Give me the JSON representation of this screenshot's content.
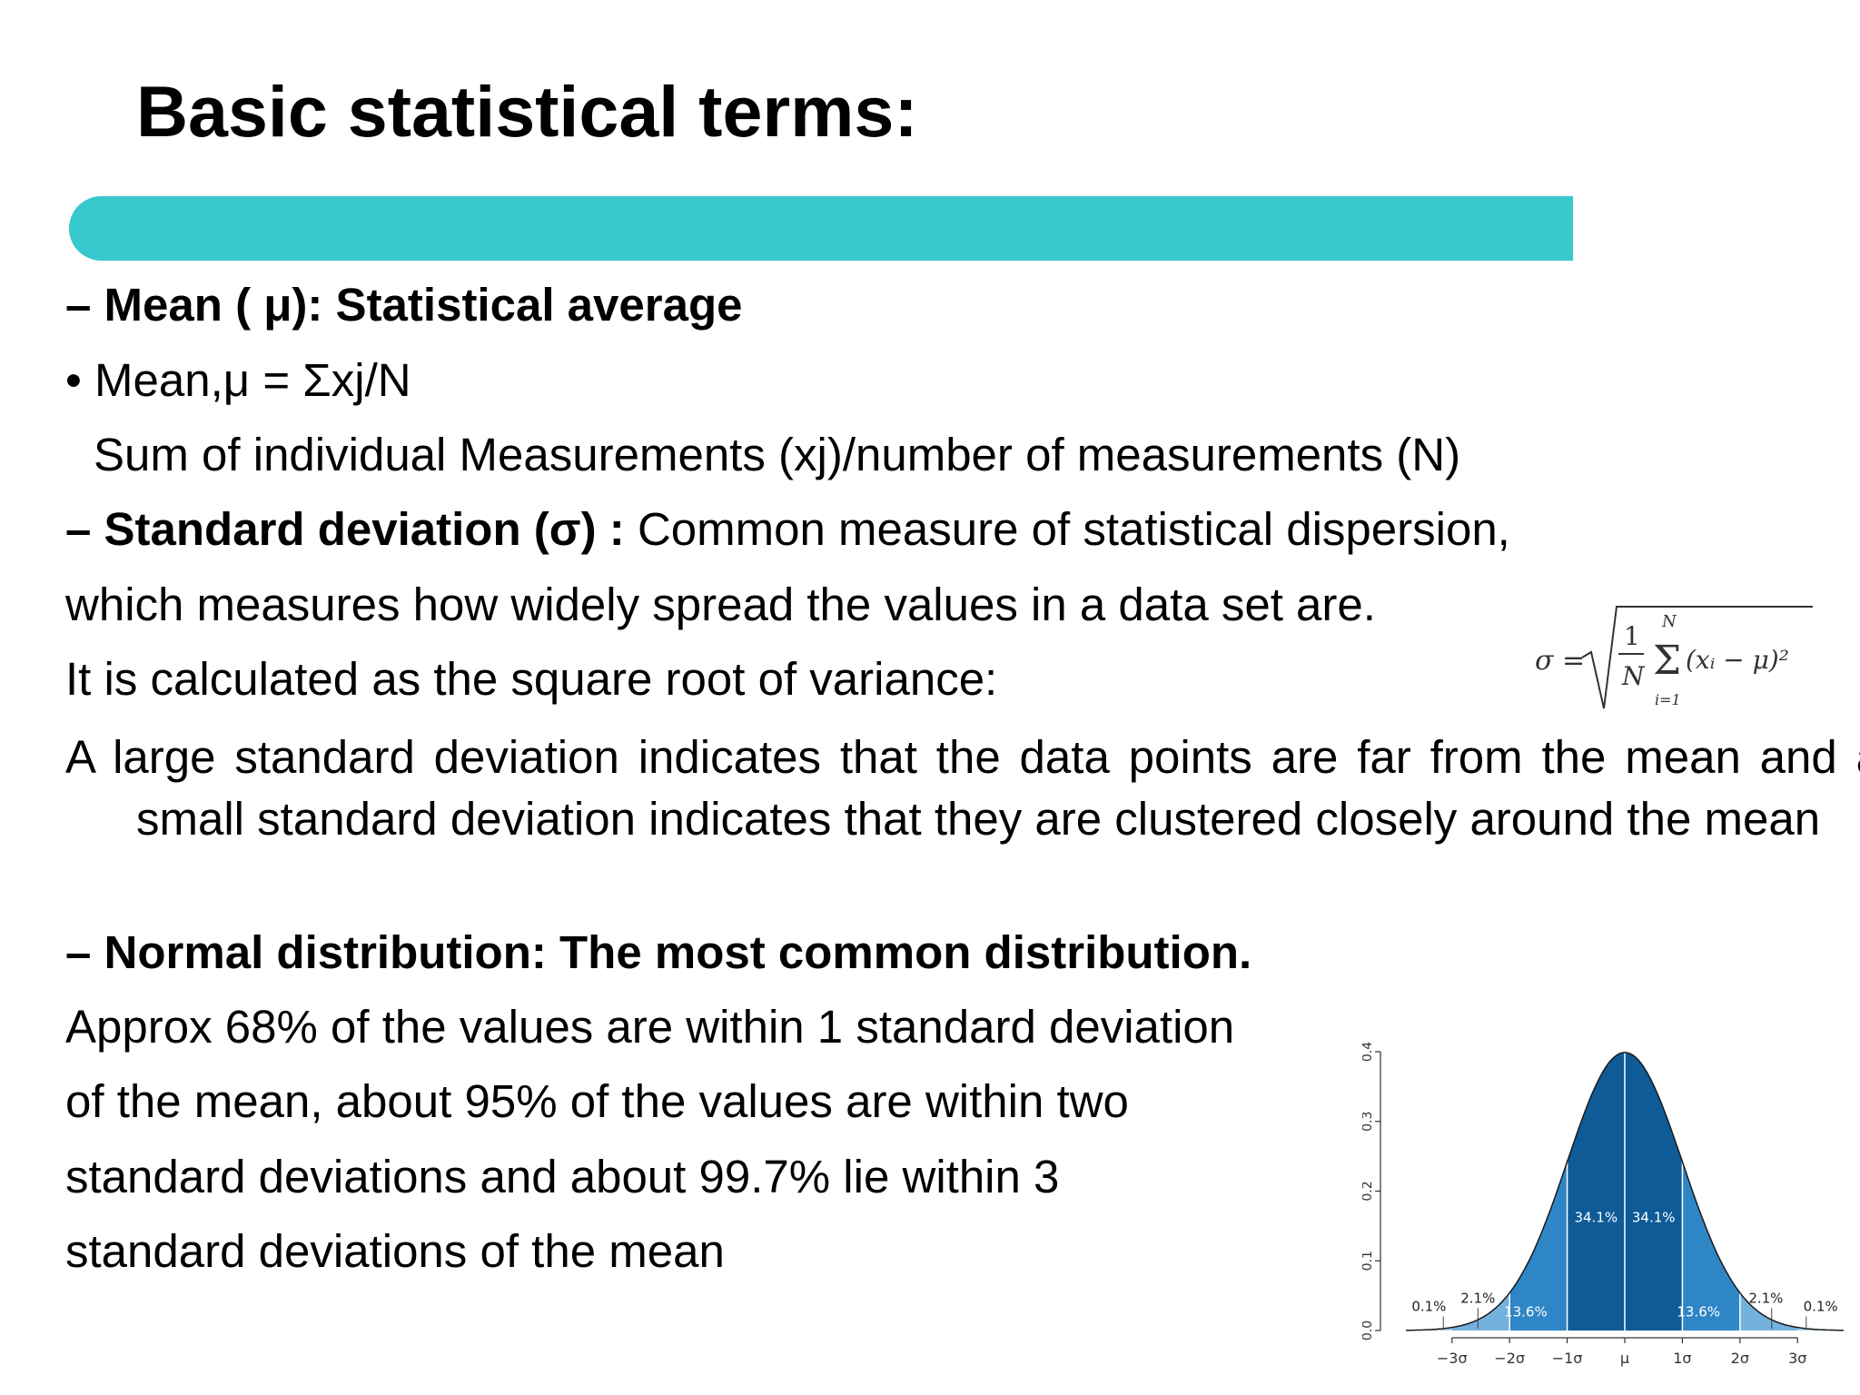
{
  "slide": {
    "title": "Basic statistical terms:",
    "accent_color": "#37c9cd"
  },
  "mean": {
    "heading": "– Mean ( μ): Statistical average",
    "formula_line": "• Mean,μ = Σxj/N",
    "explanation": "Sum of individual Measurements (xj)/number of measurements (N)"
  },
  "std_dev": {
    "heading_bold": "– Standard deviation (σ) :",
    "heading_rest": " Common measure of statistical dispersion,",
    "line2": "which measures how widely spread the values in a data set are.",
    "line3": "It is calculated as the square root of variance:",
    "paragraph": "A large standard deviation indicates that the data points are far from the mean and a small standard deviation indicates that they are clustered closely around the mean",
    "formula": {
      "lhs": "σ =",
      "numerator": "1",
      "denominator": "N",
      "sum_upper": "N",
      "sum_symbol": "Σ",
      "sum_lower": "i=1",
      "term": "(xᵢ − μ)²"
    }
  },
  "normal": {
    "heading": "– Normal distribution: The most common distribution.",
    "lines": [
      "Approx 68% of the values are within 1 standard deviation",
      "of the mean, about 95% of the values are within two",
      "standard deviations and about 99.7% lie within 3",
      "standard deviations of the mean"
    ]
  },
  "chart_data": {
    "type": "area",
    "y_ticks": [
      "0.0",
      "0.1",
      "0.2",
      "0.3",
      "0.4"
    ],
    "x_ticks": [
      "−3σ",
      "−2σ",
      "−1σ",
      "μ",
      "1σ",
      "2σ",
      "3σ"
    ],
    "ylim": [
      0,
      0.4
    ],
    "xlim": [
      -3.8,
      3.8
    ],
    "band_labels": [
      "0.1%",
      "2.1%",
      "13.6%",
      "34.1%",
      "34.1%",
      "13.6%",
      "2.1%",
      "0.1%"
    ],
    "colors": {
      "inner": "#0e5b98",
      "middle": "#2f86c6",
      "outer": "#74b2de",
      "tail": "#a9cfeb"
    }
  }
}
